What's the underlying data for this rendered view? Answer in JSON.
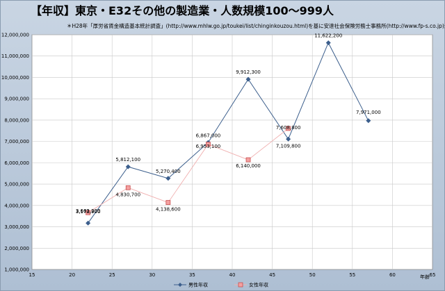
{
  "title": "【年収】東京・E32その他の製造業・人数規模100～999人",
  "subtitle": "＊H28年「厚労省賃金構造基本統計調査」(http://www.mhlw.go.jp/toukei/list/chinginkouzou.html)を基に安達社会保険労務士事務所(http://www.fp-s.co.jp)が作成",
  "chart_data": {
    "type": "line",
    "title": "【年収】東京・E32その他の製造業・人数規模100～999人",
    "xlabel": "年齢",
    "ylabel": "",
    "xlim": [
      15,
      65
    ],
    "ylim": [
      1000000,
      12000000
    ],
    "x_ticks": [
      15,
      20,
      25,
      30,
      35,
      40,
      45,
      50,
      55,
      60,
      65
    ],
    "y_ticks": [
      1000000,
      2000000,
      3000000,
      4000000,
      5000000,
      6000000,
      7000000,
      8000000,
      9000000,
      10000000,
      11000000,
      12000000
    ],
    "y_tick_labels": [
      "1,000,000",
      "2,000,000",
      "3,000,000",
      "4,000,000",
      "5,000,000",
      "6,000,000",
      "7,000,000",
      "8,000,000",
      "9,000,000",
      "10,000,000",
      "11,000,000",
      "12,000,000"
    ],
    "grid": true,
    "legend_position": "bottom",
    "series": [
      {
        "name": "男性年収",
        "color": "#3b5e8c",
        "marker": "diamond",
        "x": [
          22,
          27,
          32,
          37,
          42,
          47,
          52,
          57
        ],
        "values": [
          3173900,
          5812100,
          5270400,
          6953100,
          9912300,
          7109800,
          11622200,
          7971000
        ],
        "labels": [
          "3,173,900",
          "5,812,100",
          "5,270,400",
          "6,953,100",
          "9,912,300",
          "7,109,800",
          "11,622,200",
          "7,971,000"
        ]
      },
      {
        "name": "女性年収",
        "color": "#e08a8a",
        "marker": "square",
        "x": [
          22,
          27,
          32,
          37,
          42,
          47
        ],
        "values": [
          3662200,
          4830700,
          4138600,
          6867000,
          6140000,
          7608800
        ],
        "labels": [
          "3,662,200",
          "4,830,700",
          "4,138,600",
          "6,867,000",
          "6,140,000",
          "7,608,800"
        ]
      }
    ]
  }
}
